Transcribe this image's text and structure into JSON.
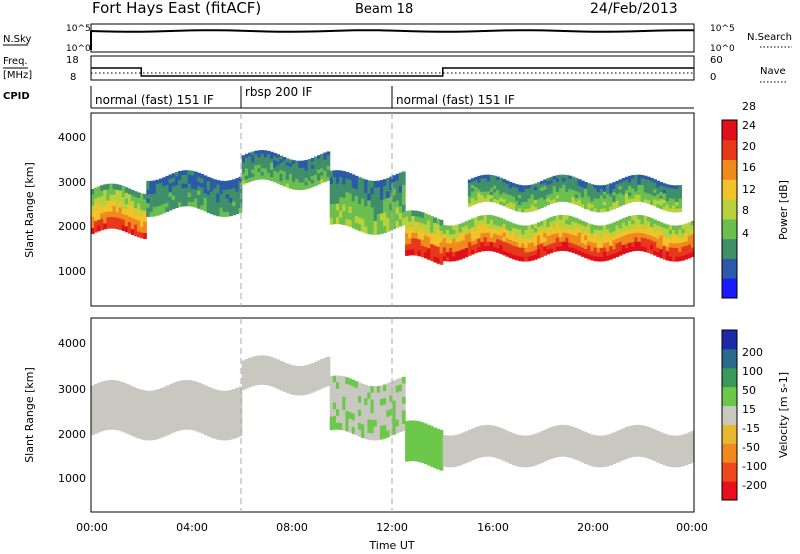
{
  "header": {
    "title": "Fort Hays East (fitACF)",
    "beam": "Beam 18",
    "date": "24/Feb/2013"
  },
  "nsky_panel": {
    "label": "N.Sky",
    "right_label": "N.Search",
    "left_ticks": [
      "10^5",
      "10^0"
    ],
    "right_ticks": [
      "10^5",
      "10^0"
    ]
  },
  "freq_panel": {
    "label_line1": "Freq.",
    "label_line2": "[MHz]",
    "right_label": "Nave",
    "left_ticks": [
      "18",
      "8"
    ],
    "right_ticks": [
      "60",
      "0"
    ]
  },
  "cpid_panel": {
    "label": "CPID",
    "segments": [
      {
        "label": "normal (fast) 151 IF",
        "start_hour": 0,
        "end_hour": 6
      },
      {
        "label": "rbsp 200 IF",
        "start_hour": 6,
        "end_hour": 12
      },
      {
        "label": "normal (fast) 151 IF",
        "start_hour": 12,
        "end_hour": 24
      }
    ]
  },
  "power_panel": {
    "ylabel": "Slant Range [km]",
    "yticks": [
      "1000",
      "2000",
      "3000",
      "4000"
    ],
    "colorbar_label": "Power [dB]",
    "colorbar_ticks": [
      "4",
      "8",
      "12",
      "16",
      "20",
      "24",
      "28"
    ],
    "colorbar_colors": [
      "#1a1aff",
      "#2a5aa8",
      "#3f8f6a",
      "#6cbf4f",
      "#b8d23c",
      "#f2c22a",
      "#f08a1e",
      "#e8381c",
      "#e0101a"
    ]
  },
  "velocity_panel": {
    "ylabel": "Slant Range [km]",
    "yticks": [
      "1000",
      "2000",
      "3000",
      "4000"
    ],
    "colorbar_label": "Velocity [m s-1]",
    "colorbar_ticks": [
      "200",
      "100",
      "50",
      "15",
      "-15",
      "-50",
      "-100",
      "-200"
    ],
    "colorbar_colors": [
      "#1a2aa8",
      "#2a6a8a",
      "#3a9a5a",
      "#6cc84a",
      "#c8c8c0",
      "#e8b830",
      "#f08a1e",
      "#ec4a1c",
      "#e8101a"
    ]
  },
  "time_axis": {
    "xlabel": "Time UT",
    "ticks": [
      "00:00",
      "04:00",
      "08:00",
      "12:00",
      "16:00",
      "20:00",
      "00:00"
    ]
  },
  "chart_data": {
    "type": "heatmap",
    "title": "Fort Hays East (fitACF)",
    "x_range_hours": [
      0,
      24
    ],
    "y_range_km": [
      180,
      4500
    ],
    "panels": [
      {
        "name": "power",
        "unit": "dB",
        "color_range": [
          0,
          30
        ],
        "echo_bands": [
          {
            "start_hour": 0,
            "end_hour": 2.2,
            "range_top_km": 2800,
            "range_bottom_km": 1800,
            "value_top": 10,
            "value_bottom": 26
          },
          {
            "start_hour": 2.2,
            "end_hour": 6,
            "range_top_km": 3100,
            "range_bottom_km": 2300,
            "value_top": 6,
            "value_bottom": 10
          },
          {
            "start_hour": 6,
            "end_hour": 9.5,
            "range_top_km": 3550,
            "range_bottom_km": 2900,
            "value_top": 6,
            "value_bottom": 12
          },
          {
            "start_hour": 9.5,
            "end_hour": 12.5,
            "range_top_km": 3100,
            "range_bottom_km": 1900,
            "value_top": 6,
            "value_bottom": 14
          },
          {
            "start_hour": 12.5,
            "end_hour": 14,
            "range_top_km": 2200,
            "range_bottom_km": 1200,
            "value_top": 10,
            "value_bottom": 28
          },
          {
            "start_hour": 14,
            "end_hour": 24,
            "range_top_km": 2100,
            "range_bottom_km": 1300,
            "value_top": 12,
            "value_bottom": 28
          },
          {
            "start_hour": 15,
            "end_hour": 23.5,
            "range_top_km": 3000,
            "range_bottom_km": 2400,
            "value_top": 6,
            "value_bottom": 14
          }
        ]
      },
      {
        "name": "velocity",
        "unit": "m s-1",
        "color_range": [
          -200,
          200
        ],
        "echo_bands": [
          {
            "start_hour": 0,
            "end_hour": 6,
            "range_top_km": 3000,
            "range_bottom_km": 1900,
            "value": 0
          },
          {
            "start_hour": 6,
            "end_hour": 9.5,
            "range_top_km": 3550,
            "range_bottom_km": 2900,
            "value": 0
          },
          {
            "start_hour": 9.5,
            "end_hour": 12.5,
            "range_top_km": 3100,
            "range_bottom_km": 1900,
            "value": 20
          },
          {
            "start_hour": 12.5,
            "end_hour": 14,
            "range_top_km": 2100,
            "range_bottom_km": 1200,
            "value": 40
          },
          {
            "start_hour": 14,
            "end_hour": 24,
            "range_top_km": 2000,
            "range_bottom_km": 1300,
            "value": 0
          }
        ]
      }
    ],
    "frequency_mhz": [
      {
        "start_hour": 0,
        "end_hour": 2,
        "value": 14
      },
      {
        "start_hour": 2,
        "end_hour": 14,
        "value": 10
      },
      {
        "start_hour": 14,
        "end_hour": 24,
        "value": 14
      }
    ]
  }
}
